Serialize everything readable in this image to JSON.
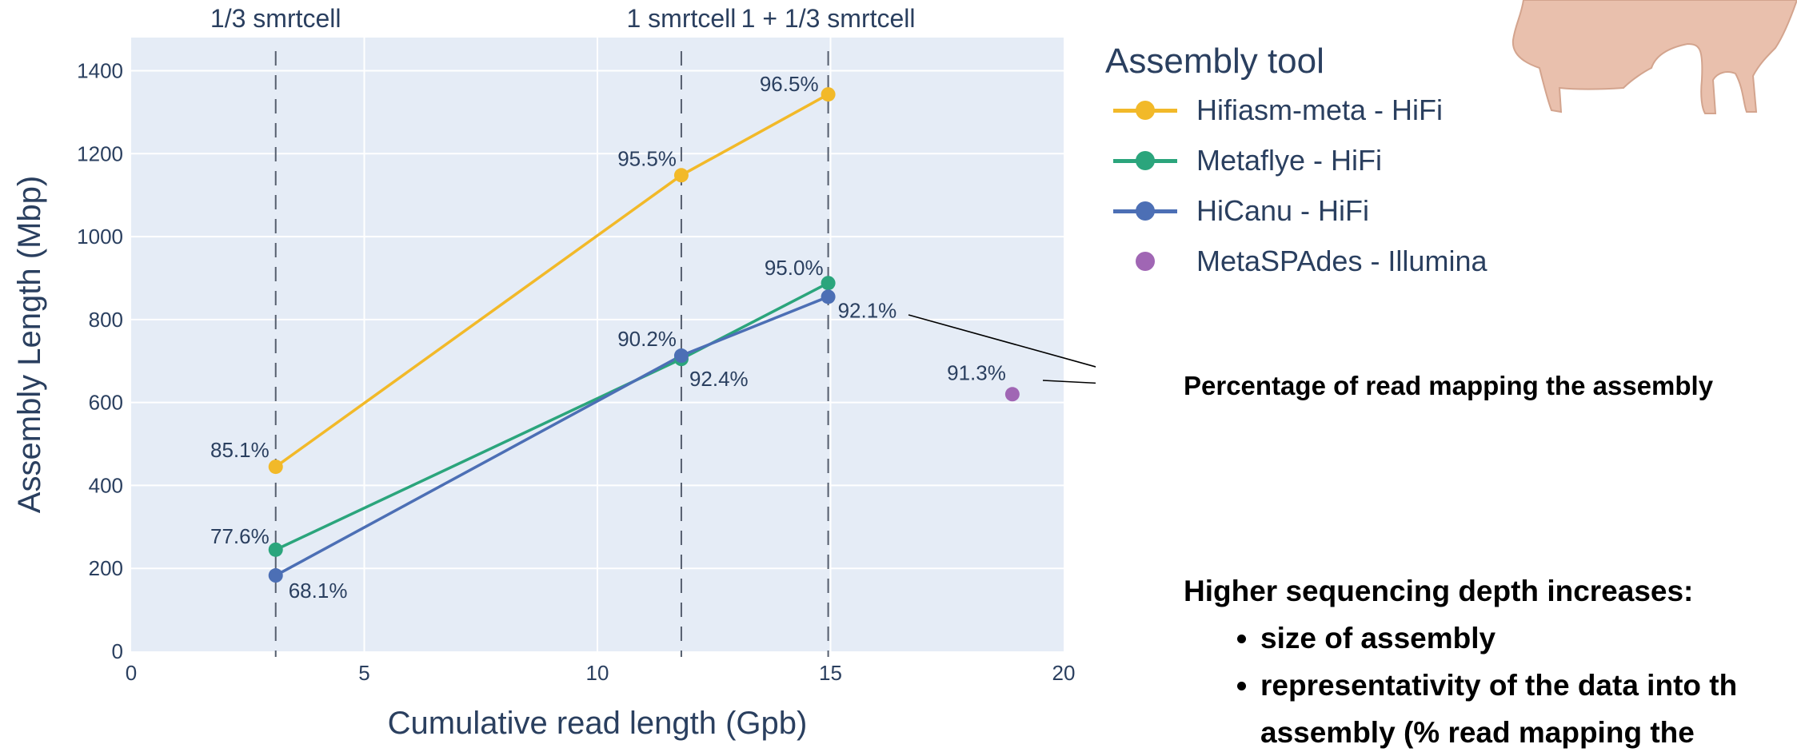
{
  "chart_data": {
    "type": "line",
    "xlabel": "Cumulative read length (Gpb)",
    "ylabel": "Assembly Length (Mbp)",
    "xlim": [
      0,
      20
    ],
    "ylim": [
      0,
      1480
    ],
    "xticks": [
      "0",
      "5",
      "10",
      "15",
      "20"
    ],
    "yticks": [
      "0",
      "200",
      "400",
      "600",
      "800",
      "1000",
      "1200",
      "1400"
    ],
    "grid": true,
    "legend_title": "Assembly tool",
    "legend_position": "right",
    "reference_lines": [
      {
        "x": 3.1,
        "label": "1/3 smrtcell"
      },
      {
        "x": 11.8,
        "label": "1 smrtcell"
      },
      {
        "x": 14.95,
        "label": "1 + 1/3 smrtcell"
      }
    ],
    "series": [
      {
        "name": "Hifiasm-meta - HiFi",
        "color": "#f2b929",
        "mode": "lines+markers",
        "x": [
          3.1,
          11.8,
          14.95
        ],
        "y": [
          445,
          1148,
          1343
        ],
        "labels": [
          "85.1%",
          "95.5%",
          "96.5%"
        ]
      },
      {
        "name": "Metaflye - HiFi",
        "color": "#2ba57c",
        "mode": "lines+markers",
        "x": [
          3.1,
          11.8,
          14.95
        ],
        "y": [
          245,
          705,
          888
        ],
        "labels": [
          "77.6%",
          "92.4%",
          "95.0%"
        ]
      },
      {
        "name": "HiCanu - HiFi",
        "color": "#4c6fb5",
        "mode": "lines+markers",
        "x": [
          3.1,
          11.8,
          14.95
        ],
        "y": [
          183,
          713,
          855
        ],
        "labels": [
          "68.1%",
          "90.2%",
          "92.1%"
        ]
      },
      {
        "name": "MetaSPAdes - Illumina",
        "color": "#a066b4",
        "mode": "markers",
        "x": [
          18.9
        ],
        "y": [
          620
        ],
        "labels": [
          "91.3%"
        ]
      }
    ]
  },
  "annotation": {
    "text": "Percentage of read mapping the assembly"
  },
  "notes": {
    "heading": "Higher sequencing depth increases:",
    "bullets": [
      "size of assembly",
      "representativity of the data into th",
      "assembly (% read mapping the"
    ]
  },
  "image": {
    "icon": "pig-illustration"
  }
}
